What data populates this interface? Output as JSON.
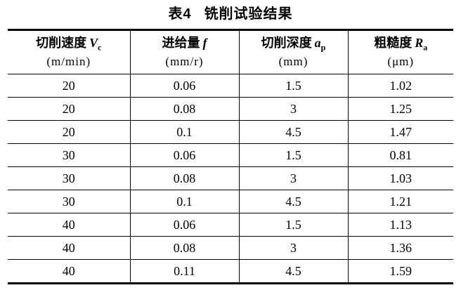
{
  "title": {
    "tag": "表4",
    "text": "铣削试验结果"
  },
  "table": {
    "columns": [
      {
        "name": "切削速度",
        "symbol": "V",
        "sub": "c",
        "unit": "(m/min)"
      },
      {
        "name": "进给量",
        "symbol": "f",
        "sub": "",
        "unit": "(mm/r)"
      },
      {
        "name": "切削深度",
        "symbol": "a",
        "sub": "p",
        "unit": "(mm)"
      },
      {
        "name": "粗糙度",
        "symbol": "R",
        "sub": "a",
        "unit": "(μm)"
      }
    ],
    "rows": [
      [
        "20",
        "0.06",
        "1.5",
        "1.02"
      ],
      [
        "20",
        "0.08",
        "3",
        "1.25"
      ],
      [
        "20",
        "0.1",
        "4.5",
        "1.47"
      ],
      [
        "30",
        "0.06",
        "1.5",
        "0.81"
      ],
      [
        "30",
        "0.08",
        "3",
        "1.03"
      ],
      [
        "30",
        "0.1",
        "4.5",
        "1.21"
      ],
      [
        "40",
        "0.06",
        "1.5",
        "1.13"
      ],
      [
        "40",
        "0.08",
        "3",
        "1.36"
      ],
      [
        "40",
        "0.11",
        "4.5",
        "1.59"
      ]
    ]
  }
}
